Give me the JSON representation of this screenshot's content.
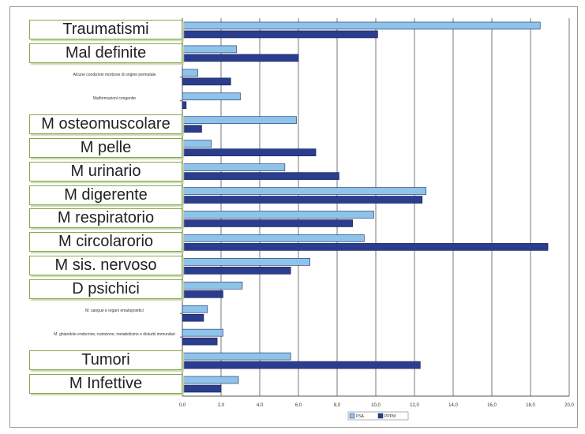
{
  "chart_data": {
    "type": "bar",
    "orientation": "horizontal",
    "categories": [
      "Traumatismi",
      "Mal definite",
      "Alcune condizioni morbose di origine perinatale",
      "Malformazioni congenite",
      "M osteomuscolare",
      "M pelle",
      "M urinario",
      "M digerente",
      "M respiratorio",
      "M circolarorio",
      "M sis. nervoso",
      "D psichici",
      "M. sangue e organi ematopoietici",
      "M. ghiandole endocrine, nutrizione, metabolismo e disturbi immunitari",
      "Tumori",
      "M Infettive"
    ],
    "series": [
      {
        "name": "PSA",
        "values": [
          18.5,
          2.8,
          0.8,
          3.0,
          5.9,
          1.5,
          5.3,
          12.6,
          9.9,
          9.4,
          6.6,
          3.1,
          1.3,
          2.1,
          5.6,
          2.9
        ]
      },
      {
        "name": "PPPM",
        "values": [
          10.1,
          6.0,
          2.5,
          0.2,
          1.0,
          6.9,
          8.1,
          12.4,
          8.8,
          18.9,
          5.6,
          2.1,
          1.1,
          1.8,
          12.3,
          2.0
        ]
      }
    ],
    "xlim": [
      0,
      20
    ],
    "xticks": [
      "0,0",
      "2,0",
      "4,0",
      "6,0",
      "8,0",
      "10,0",
      "12,0",
      "14,0",
      "16,0",
      "18,0",
      "20,0"
    ],
    "grid": true,
    "legend_position": "bottom-center",
    "colors": {
      "PSA": "#8ec3ea",
      "PPPM": "#2b3d8e",
      "grid": "#7a7a7a",
      "label_border": "#86a84a"
    }
  }
}
